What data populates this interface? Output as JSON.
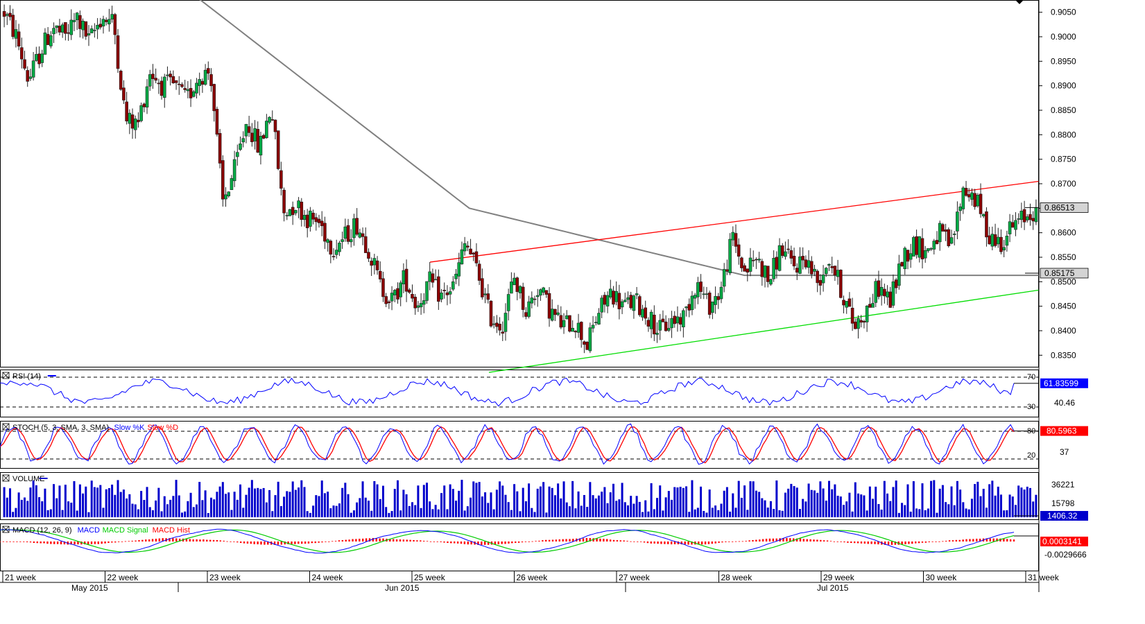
{
  "chart_data": {
    "type": "candlestick",
    "instrument_price_axis": {
      "ticks": [
        "0.9050",
        "0.9000",
        "0.8950",
        "0.8900",
        "0.8850",
        "0.8800",
        "0.8750",
        "0.8700",
        "0.8650",
        "0.8600",
        "0.8550",
        "0.8500",
        "0.8450",
        "0.8400",
        "0.8350"
      ],
      "ylim": [
        0.8325,
        0.9075
      ],
      "last_price_label": "0.86513",
      "ma_value_label": "0.85175",
      "last_price": 0.86513,
      "ma_last": 0.85175
    },
    "x_axis": {
      "week_labels": [
        "21 week",
        "22 week",
        "23 week",
        "24 week",
        "25 week",
        "26 week",
        "27 week",
        "28 week",
        "29 week",
        "30 week",
        "31 week"
      ],
      "month_labels": [
        "May 2015",
        "Jun 2015",
        "Jul 2015"
      ]
    },
    "candles_per_week": 30,
    "close_path": [
      0.905,
      0.9,
      0.891,
      0.897,
      0.902,
      0.9,
      0.904,
      0.899,
      0.904,
      0.903,
      0.883,
      0.882,
      0.893,
      0.89,
      0.89,
      0.887,
      0.892,
      0.893,
      0.866,
      0.873,
      0.883,
      0.877,
      0.886,
      0.864,
      0.866,
      0.863,
      0.862,
      0.857,
      0.859,
      0.862,
      0.857,
      0.849,
      0.846,
      0.851,
      0.845,
      0.85,
      0.847,
      0.849,
      0.858,
      0.852,
      0.843,
      0.841,
      0.851,
      0.844,
      0.849,
      0.844,
      0.841,
      0.842,
      0.837,
      0.844,
      0.848,
      0.845,
      0.846,
      0.843,
      0.84,
      0.842,
      0.843,
      0.85,
      0.845,
      0.848,
      0.859,
      0.852,
      0.855,
      0.85,
      0.857,
      0.853,
      0.855,
      0.85,
      0.855,
      0.848,
      0.841,
      0.844,
      0.849,
      0.846,
      0.855,
      0.858,
      0.856,
      0.86,
      0.857,
      0.869,
      0.867,
      0.86,
      0.858,
      0.861,
      0.863,
      0.865
    ],
    "moving_average_path": [
      0.9085,
      0.865,
      0.8513,
      0.8513
    ],
    "trend_lines": {
      "resistance": {
        "color": "#ff0000",
        "from": 0.854,
        "to": 0.8705
      },
      "support": {
        "color": "#00dd00",
        "from": 0.8315,
        "to": 0.8483
      }
    },
    "indicators": {
      "rsi": {
        "label": "RSI (14)",
        "levels": [
          "70",
          "30"
        ],
        "mid_tick": "40.46",
        "value_label": "61.83599",
        "levels_num": [
          70,
          30
        ],
        "color": "#0000ff"
      },
      "stoch": {
        "label_prefix": "STOCH (5, 3, SMA, 3, SMA)",
        "label_k": "Slow %K",
        "label_d": "Slow %D",
        "levels": [
          "80",
          "20"
        ],
        "mid_tick": "37",
        "value_label": "80.5963",
        "colors": {
          "k": "#0000ff",
          "d": "#ff0000"
        }
      },
      "volume": {
        "label": "VOLUME",
        "ticks": [
          "36221",
          "15798"
        ],
        "value_label": "1406.32",
        "color": "#0000cc"
      },
      "macd": {
        "label_prefix": "MACD (12, 26, 9)",
        "label_macd": "MACD",
        "label_signal": "MACD Signal",
        "label_hist": "MACD Hist",
        "value_label": "0.0003141",
        "tick": "-0.0029666",
        "colors": {
          "macd": "#0000ff",
          "signal": "#00cc00",
          "hist": "#ff0000"
        }
      }
    },
    "colors": {
      "bull_candle": "#00aa44",
      "bear_candle": "#8b0000",
      "moving_average": "#808080",
      "panel_border": "#000000",
      "grid_dash": "#000000"
    }
  }
}
